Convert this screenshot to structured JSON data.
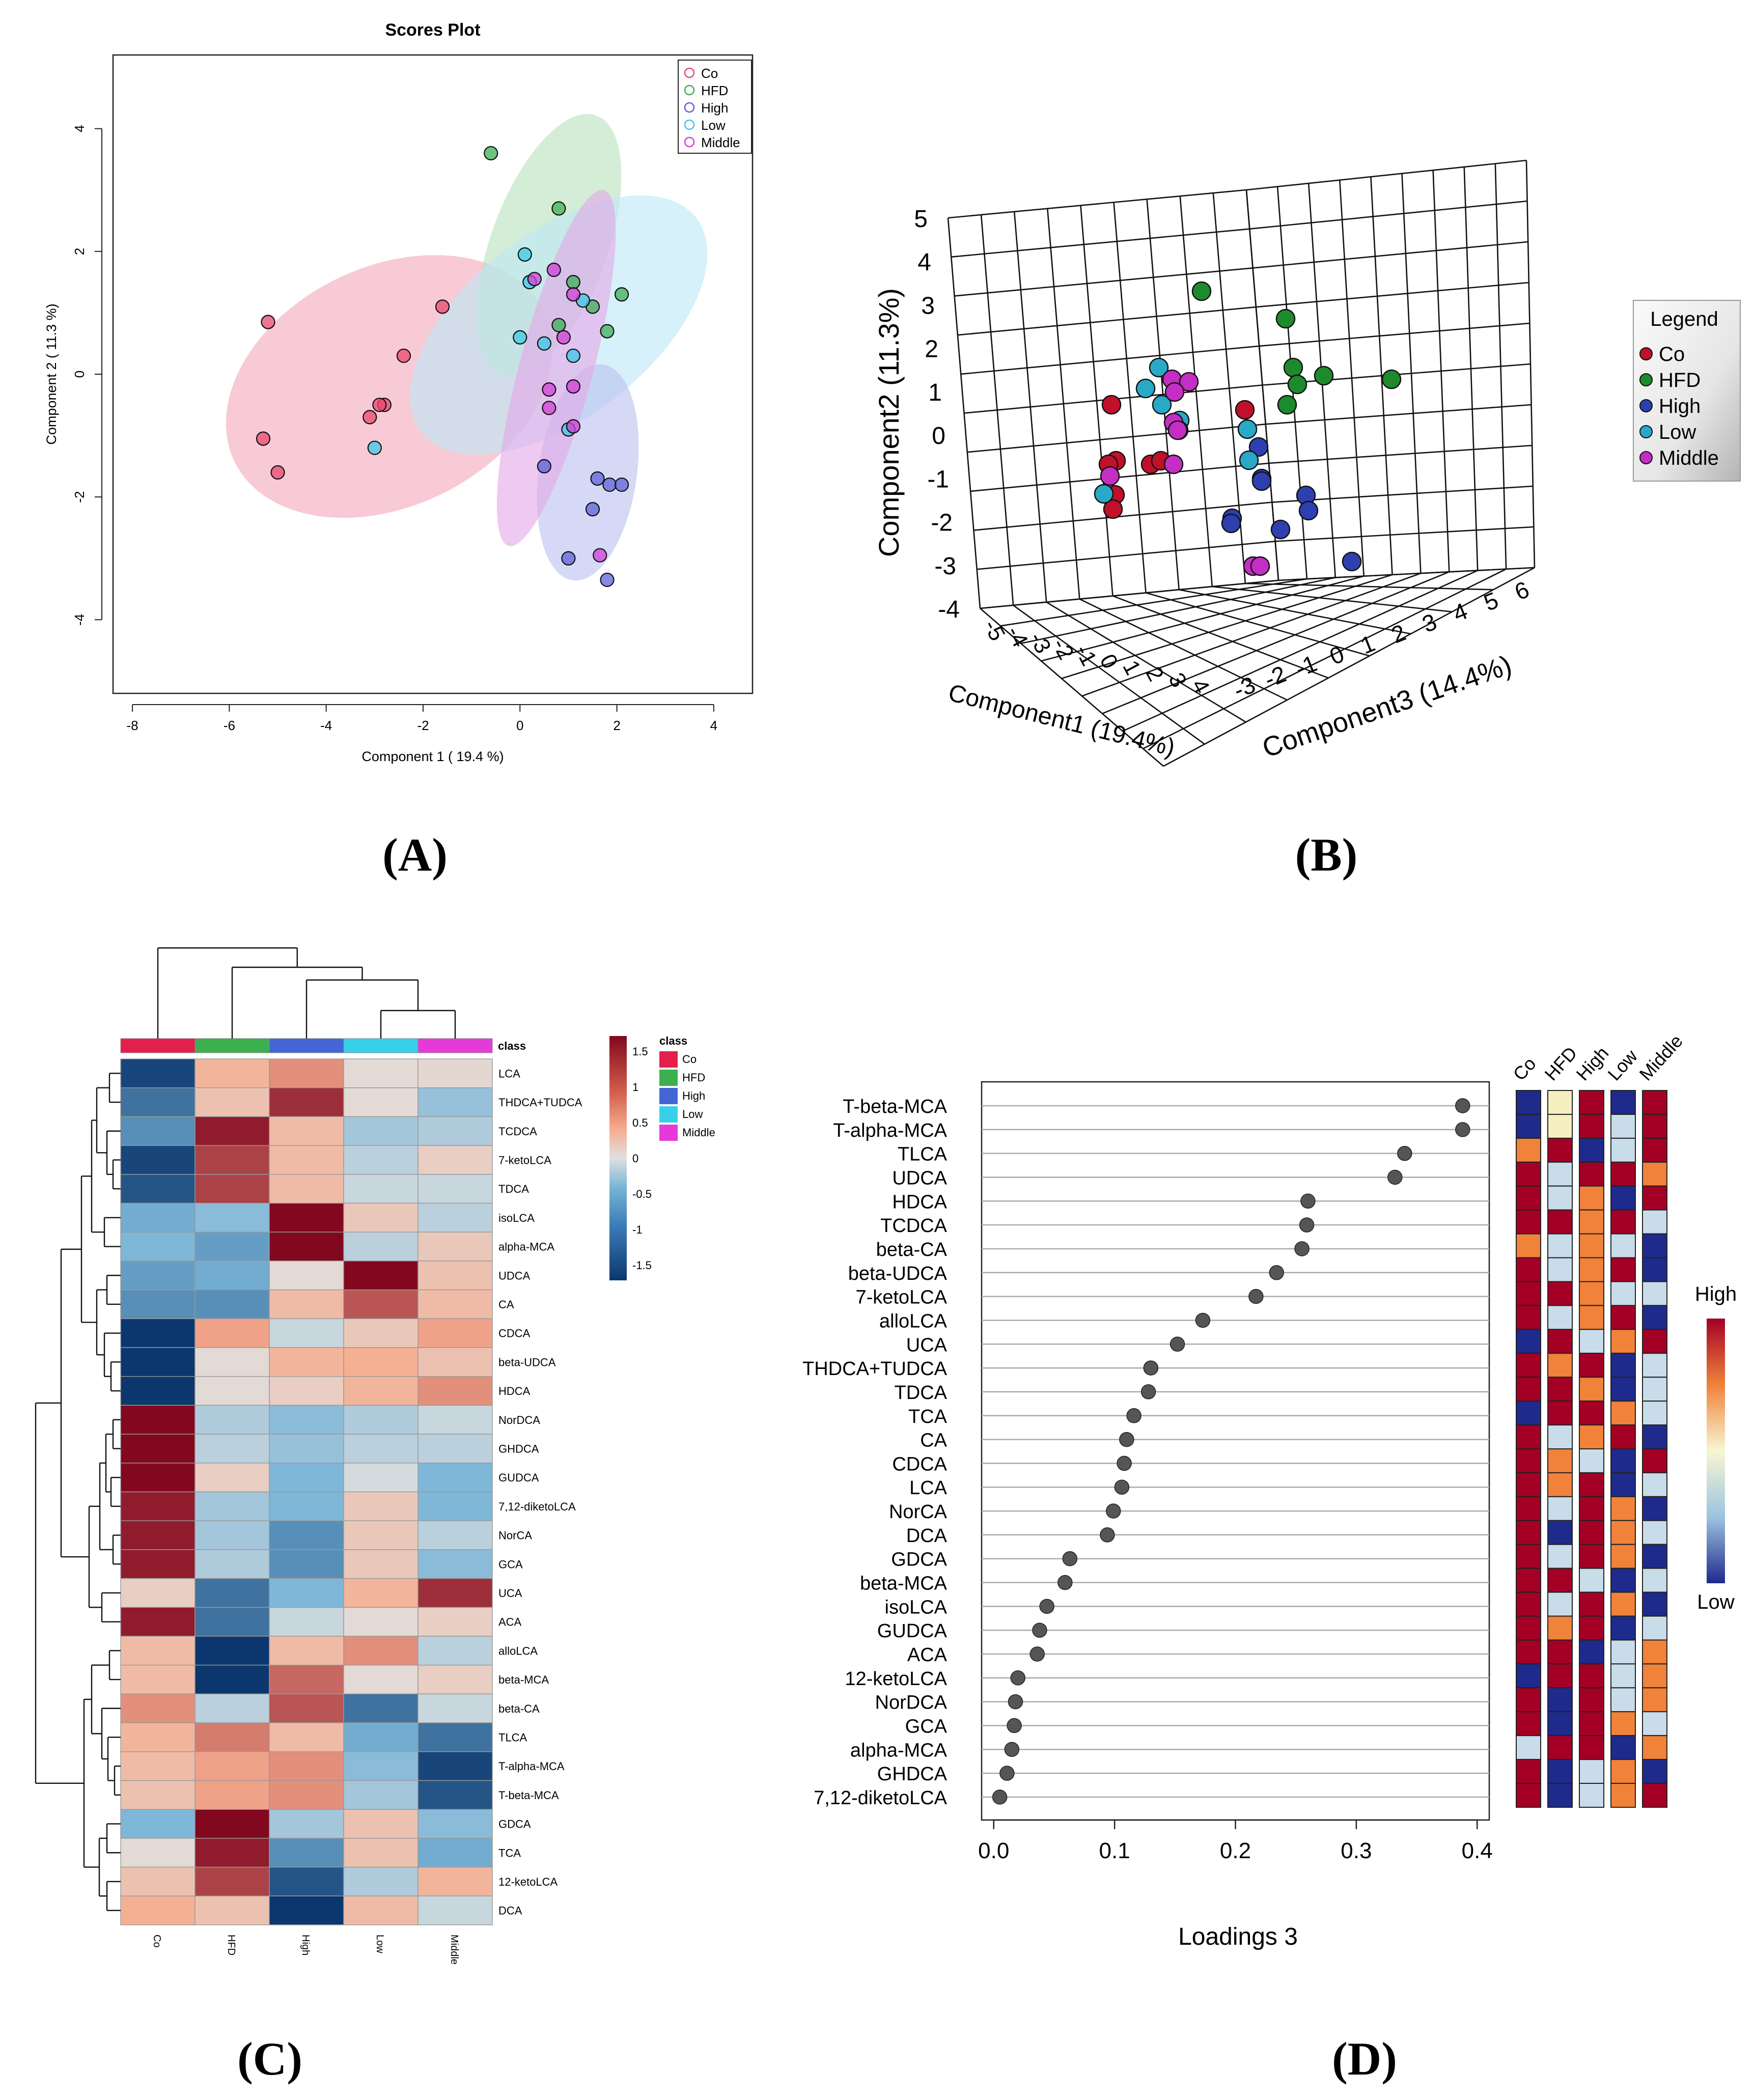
{
  "chart_data": [
    {
      "panel": "A",
      "panel_label": "(A)",
      "type": "scatter",
      "title": "Scores Plot",
      "xlabel": "Component 1 ( 19.4 %)",
      "ylabel": "Component 2 ( 11.3 %)",
      "xlim": [
        -8.4,
        4.8
      ],
      "ylim": [
        -5.2,
        5.2
      ],
      "xticks": [
        -8,
        -6,
        -4,
        -2,
        0,
        2,
        4
      ],
      "yticks": [
        -4,
        -2,
        0,
        2,
        4
      ],
      "legend": [
        "Co",
        "HFD",
        "High",
        "Low",
        "Middle"
      ],
      "colors": {
        "Co": "#e8486e",
        "HFD": "#3fae54",
        "High": "#5d62d8",
        "Low": "#3cc8e6",
        "Middle": "#d23fd6"
      },
      "ellipse_fills": {
        "Co": "#f4a9bc",
        "HFD": "#b9e2bd",
        "High": "#bcc2ef",
        "Low": "#bde8f5",
        "Middle": "#e3a8e8"
      },
      "ellipses": [
        {
          "group": "Co",
          "cx": -2.7,
          "cy": -0.2,
          "rx": 3.55,
          "ry": 1.95,
          "angle": -26
        },
        {
          "group": "HFD",
          "cx": 0.6,
          "cy": 2.1,
          "rx": 2.85,
          "ry": 0.95,
          "angle": -70
        },
        {
          "group": "Low",
          "cx": 0.8,
          "cy": 0.8,
          "rx": 3.6,
          "ry": 1.5,
          "angle": -38
        },
        {
          "group": "High",
          "cx": 1.4,
          "cy": -1.6,
          "rx": 2.25,
          "ry": 0.8,
          "angle": -82
        },
        {
          "group": "Middle",
          "cx": 0.75,
          "cy": 0.1,
          "rx": 3.8,
          "ry": 0.6,
          "angle": -75
        }
      ],
      "series": [
        {
          "name": "Co",
          "points": [
            [
              -5.2,
              0.85
            ],
            [
              -5.3,
              -1.05
            ],
            [
              -5.0,
              -1.6
            ],
            [
              -1.6,
              1.1
            ],
            [
              -2.4,
              0.3
            ],
            [
              -2.8,
              -0.5
            ],
            [
              -2.9,
              -0.5
            ],
            [
              -3.1,
              -0.7
            ]
          ]
        },
        {
          "name": "HFD",
          "points": [
            [
              -0.6,
              3.6
            ],
            [
              0.8,
              2.7
            ],
            [
              1.1,
              1.5
            ],
            [
              2.1,
              1.3
            ],
            [
              1.5,
              1.1
            ],
            [
              1.8,
              0.7
            ],
            [
              0.8,
              0.8
            ]
          ]
        },
        {
          "name": "High",
          "points": [
            [
              0.5,
              -1.5
            ],
            [
              1.6,
              -1.7
            ],
            [
              1.85,
              -1.8
            ],
            [
              2.1,
              -1.8
            ],
            [
              1.5,
              -2.2
            ],
            [
              1.0,
              -3.0
            ],
            [
              1.8,
              -3.35
            ]
          ]
        },
        {
          "name": "Low",
          "points": [
            [
              0.1,
              1.95
            ],
            [
              0.2,
              1.5
            ],
            [
              1.3,
              1.2
            ],
            [
              0.0,
              0.6
            ],
            [
              0.5,
              0.5
            ],
            [
              1.1,
              0.3
            ],
            [
              -3.0,
              -1.2
            ],
            [
              1.0,
              -0.9
            ]
          ]
        },
        {
          "name": "Middle",
          "points": [
            [
              0.7,
              1.7
            ],
            [
              0.3,
              1.55
            ],
            [
              1.1,
              1.3
            ],
            [
              0.9,
              0.6
            ],
            [
              1.1,
              -0.2
            ],
            [
              0.6,
              -0.25
            ],
            [
              0.6,
              -0.55
            ],
            [
              1.1,
              -0.85
            ],
            [
              1.65,
              -2.95
            ]
          ]
        }
      ]
    },
    {
      "panel": "B",
      "panel_label": "(B)",
      "type": "scatter",
      "subtype": "3d",
      "x_axis_label": "Component1 (19.4%)",
      "y_axis_label": "Component2 (11.3%)",
      "z_axis_label": "Component3 (14.4%)",
      "y_ticks": [
        "5",
        "4",
        "3",
        "2",
        "1",
        "0",
        "-1",
        "-2",
        "-3",
        "-4"
      ],
      "z_ticks": [
        "-3",
        "-2",
        "-1",
        "0",
        "1",
        "2",
        "3",
        "4",
        "5",
        "6"
      ],
      "x_ticks": [
        "-5",
        "-4",
        "-3",
        "-2",
        "-1",
        "0",
        "1",
        "2",
        "3",
        "4"
      ],
      "legend_title": "Legend",
      "legend": [
        "Co",
        "HFD",
        "High",
        "Low",
        "Middle"
      ],
      "colors": {
        "Co": "#c0102a",
        "HFD": "#1e8a2e",
        "High": "#2e3fb0",
        "Low": "#2aa8c8",
        "Middle": "#c42ec4"
      }
    },
    {
      "panel": "C",
      "panel_label": "(C)",
      "type": "heatmap",
      "columns": [
        "Co",
        "HFD",
        "High",
        "Low",
        "Middle"
      ],
      "class_label": "class",
      "class_colors": {
        "Co": "#e41f4c",
        "HFD": "#3cb04e",
        "High": "#4466d4",
        "Low": "#38d0e8",
        "Middle": "#e63ad8"
      },
      "colorbar_ticks": [
        "1.5",
        "1",
        "0.5",
        "0",
        "-0.5",
        "-1",
        "-1.5"
      ],
      "vmin": -1.7,
      "vmax": 1.7,
      "rows": [
        "LCA",
        "THDCA+TUDCA",
        "TCDCA",
        "7-ketoLCA",
        "TDCA",
        "isoLCA",
        "alpha-MCA",
        "UDCA",
        "CA",
        "CDCA",
        "beta-UDCA",
        "HDCA",
        "NorDCA",
        "GHDCA",
        "GUDCA",
        "7,12-diketoLCA",
        "NorCA",
        "GCA",
        "UCA",
        "ACA",
        "alloLCA",
        "beta-MCA",
        "beta-CA",
        "TLCA",
        "T-alpha-MCA",
        "T-beta-MCA",
        "GDCA",
        "TCA",
        "12-ketoLCA",
        "DCA"
      ],
      "values": [
        [
          -1.6,
          0.7,
          1.0,
          0.1,
          0.15
        ],
        [
          -1.3,
          0.5,
          1.5,
          0.1,
          -0.6
        ],
        [
          -1.1,
          1.6,
          0.6,
          -0.5,
          -0.4
        ],
        [
          -1.6,
          1.4,
          0.6,
          -0.3,
          0.3
        ],
        [
          -1.5,
          1.4,
          0.6,
          -0.2,
          -0.2
        ],
        [
          -0.9,
          -0.7,
          1.7,
          0.4,
          -0.3
        ],
        [
          -0.8,
          -1.0,
          1.7,
          -0.3,
          0.4
        ],
        [
          -1.0,
          -0.9,
          0.1,
          1.7,
          0.5
        ],
        [
          -1.1,
          -1.1,
          0.6,
          1.3,
          0.6
        ],
        [
          -1.7,
          0.9,
          -0.2,
          0.4,
          0.9
        ],
        [
          -1.7,
          0.1,
          0.7,
          0.8,
          0.5
        ],
        [
          -1.7,
          0.1,
          0.3,
          0.7,
          1.0
        ],
        [
          1.7,
          -0.4,
          -0.7,
          -0.4,
          -0.2
        ],
        [
          1.7,
          -0.3,
          -0.6,
          -0.3,
          -0.3
        ],
        [
          1.7,
          0.3,
          -0.8,
          -0.1,
          -0.8
        ],
        [
          1.6,
          -0.5,
          -0.8,
          0.4,
          -0.8
        ],
        [
          1.6,
          -0.5,
          -1.1,
          0.4,
          -0.3
        ],
        [
          1.6,
          -0.4,
          -1.1,
          0.4,
          -0.7
        ],
        [
          0.3,
          -1.3,
          -0.8,
          0.7,
          1.5
        ],
        [
          1.6,
          -1.3,
          -0.2,
          0.1,
          0.3
        ],
        [
          0.6,
          -1.7,
          0.6,
          1.0,
          -0.3
        ],
        [
          0.6,
          -1.7,
          1.2,
          0.1,
          0.3
        ],
        [
          1.0,
          -0.3,
          1.3,
          -1.3,
          -0.2
        ],
        [
          0.7,
          1.1,
          0.6,
          -0.9,
          -1.3
        ],
        [
          0.6,
          0.9,
          1.0,
          -0.7,
          -1.6
        ],
        [
          0.5,
          0.9,
          1.0,
          -0.5,
          -1.5
        ],
        [
          -0.8,
          1.7,
          -0.5,
          0.5,
          -0.7
        ],
        [
          0.1,
          1.6,
          -1.1,
          0.5,
          -0.9
        ],
        [
          0.5,
          1.4,
          -1.5,
          -0.4,
          0.7
        ],
        [
          0.8,
          0.5,
          -1.7,
          0.6,
          -0.2
        ]
      ]
    },
    {
      "panel": "D",
      "panel_label": "(D)",
      "type": "scatter",
      "subtype": "dot-plot",
      "xlabel": "Loadings 3",
      "xlim": [
        -0.01,
        0.41
      ],
      "xticks": [
        "0.0",
        "0.1",
        "0.2",
        "0.3",
        "0.4"
      ],
      "columns": [
        "Co",
        "HFD",
        "High",
        "Low",
        "Middle"
      ],
      "colorbar_high": "High",
      "colorbar_low": "Low",
      "features": [
        "T-beta-MCA",
        "T-alpha-MCA",
        "TLCA",
        "UDCA",
        "HDCA",
        "TCDCA",
        "beta-CA",
        "beta-UDCA",
        "7-ketoLCA",
        "alloLCA",
        "UCA",
        "THDCA+TUDCA",
        "TDCA",
        "TCA",
        "CA",
        "CDCA",
        "LCA",
        "NorCA",
        "DCA",
        "GDCA",
        "beta-MCA",
        "isoLCA",
        "GUDCA",
        "ACA",
        "12-ketoLCA",
        "NorDCA",
        "GCA",
        "alpha-MCA",
        "GHDCA",
        "7,12-diketoLCA"
      ],
      "values": [
        0.388,
        0.388,
        0.34,
        0.332,
        0.26,
        0.259,
        0.255,
        0.234,
        0.217,
        0.173,
        0.152,
        0.13,
        0.128,
        0.116,
        0.11,
        0.108,
        0.106,
        0.099,
        0.094,
        0.063,
        0.059,
        0.044,
        0.038,
        0.036,
        0.02,
        0.018,
        0.017,
        0.015,
        0.011,
        0.005
      ],
      "grid_levels": [
        [
          0,
          2,
          4,
          0,
          4
        ],
        [
          0,
          2,
          4,
          1,
          4
        ],
        [
          3,
          4,
          0,
          1,
          4
        ],
        [
          4,
          1,
          4,
          4,
          3
        ],
        [
          4,
          1,
          3,
          0,
          4
        ],
        [
          4,
          4,
          3,
          4,
          1
        ],
        [
          3,
          1,
          3,
          1,
          0
        ],
        [
          4,
          1,
          3,
          4,
          0
        ],
        [
          4,
          4,
          3,
          1,
          1
        ],
        [
          4,
          1,
          3,
          4,
          0
        ],
        [
          0,
          4,
          1,
          3,
          4
        ],
        [
          4,
          3,
          4,
          0,
          1
        ],
        [
          4,
          4,
          3,
          0,
          1
        ],
        [
          0,
          4,
          4,
          3,
          1
        ],
        [
          4,
          1,
          3,
          4,
          0
        ],
        [
          4,
          3,
          1,
          0,
          4
        ],
        [
          4,
          3,
          4,
          0,
          1
        ],
        [
          4,
          1,
          4,
          3,
          0
        ],
        [
          4,
          0,
          4,
          3,
          1
        ],
        [
          4,
          1,
          4,
          3,
          0
        ],
        [
          4,
          4,
          1,
          0,
          1
        ],
        [
          4,
          1,
          4,
          3,
          0
        ],
        [
          4,
          3,
          4,
          0,
          1
        ],
        [
          4,
          4,
          0,
          1,
          3
        ],
        [
          0,
          4,
          4,
          1,
          3
        ],
        [
          4,
          0,
          4,
          1,
          3
        ],
        [
          4,
          0,
          4,
          3,
          1
        ],
        [
          1,
          4,
          4,
          0,
          3
        ],
        [
          4,
          0,
          1,
          3,
          0
        ],
        [
          4,
          0,
          1,
          3,
          4
        ]
      ]
    }
  ]
}
